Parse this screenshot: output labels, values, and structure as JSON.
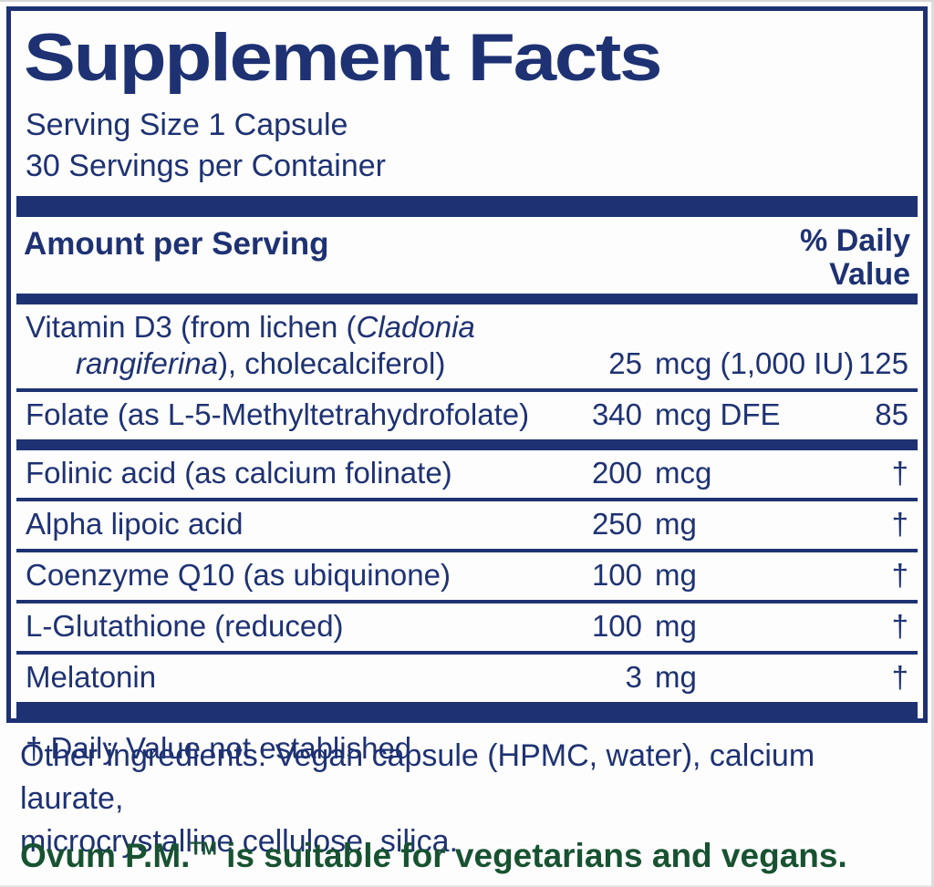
{
  "panel": {
    "title": "Supplement Facts",
    "serving_size": "Serving Size 1 Capsule",
    "servings_per_container": "30 Servings per Container",
    "header": {
      "amount_label": "Amount per Serving",
      "dv_line1": "% Daily",
      "dv_line2": "Value"
    },
    "rows": [
      {
        "name_pre": "Vitamin D3 (from lichen (",
        "name_italic": "Cladonia",
        "name2_italic": "rangiferina",
        "name2_post": "), cholecalciferol)",
        "qty": "25",
        "unit": "mcg (1,000 IU)",
        "dv": "125"
      },
      {
        "name": "Folate (as L-5-Methyltetrahydrofolate)",
        "qty": "340",
        "unit": "mcg DFE",
        "dv": "85"
      },
      {
        "name": "Folinic acid (as calcium folinate)",
        "qty": "200",
        "unit": "mcg",
        "dv": "†"
      },
      {
        "name": "Alpha lipoic acid",
        "qty": "250",
        "unit": "mg",
        "dv": "†"
      },
      {
        "name": "Coenzyme Q10 (as ubiquinone)",
        "qty": "100",
        "unit": "mg",
        "dv": "†"
      },
      {
        "name": "L-Glutathione (reduced)",
        "qty": "100",
        "unit": "mg",
        "dv": "†"
      },
      {
        "name": "Melatonin",
        "qty": "3",
        "unit": "mg",
        "dv": "†"
      }
    ],
    "footnote": "† Daily Value not established"
  },
  "other_ingredients": {
    "line1": "Other ingredients: Vegan capsule (HPMC, water), calcium laurate,",
    "line2": "microcrystalline cellulose, silica."
  },
  "vegan_note": {
    "brand": "Ovum P.M.",
    "tm": "TM",
    "rest": " is suitable for vegetarians and vegans."
  },
  "colors": {
    "navy": "#1e3273",
    "green": "#175231"
  }
}
